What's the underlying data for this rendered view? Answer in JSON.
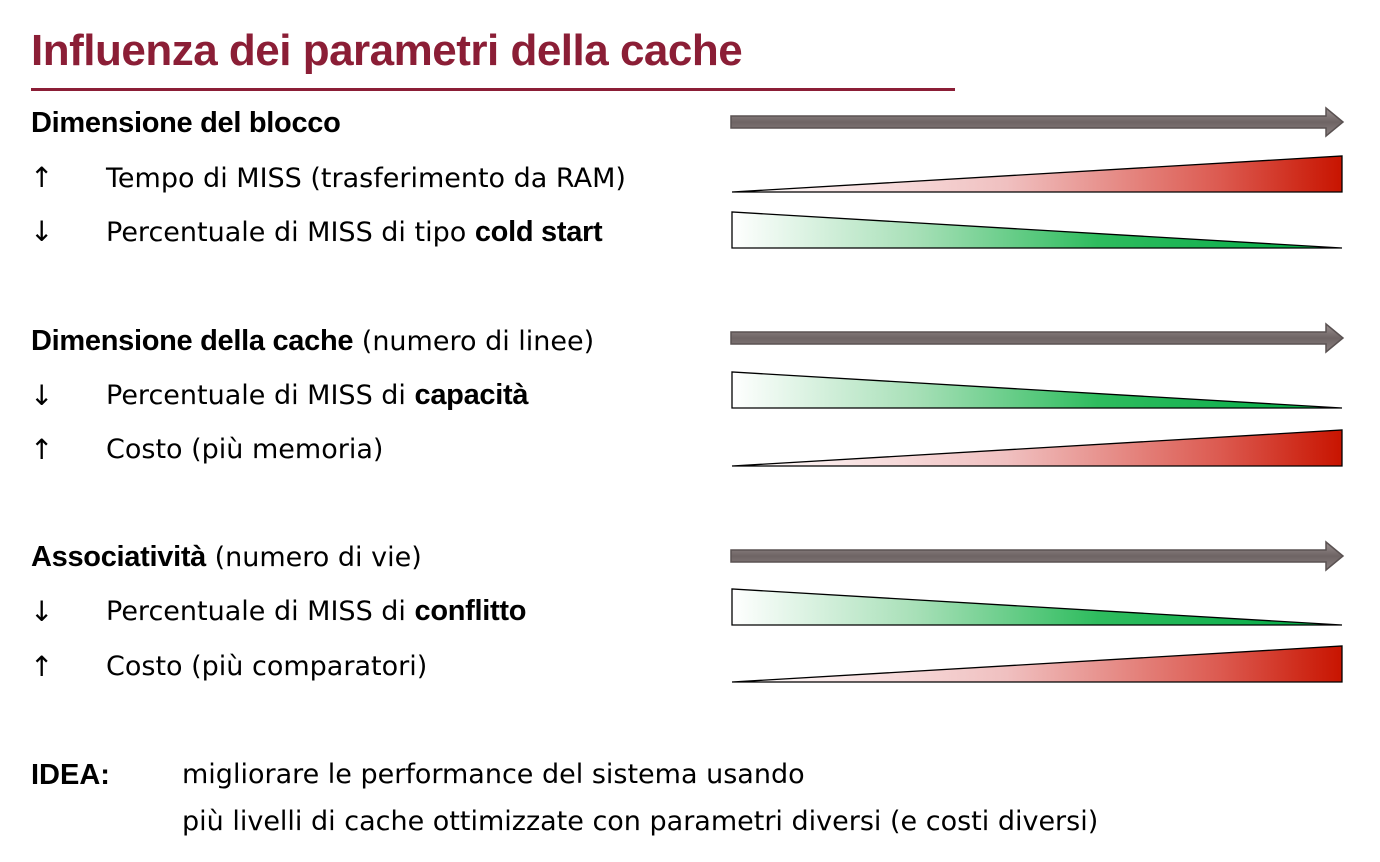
{
  "title": "Influenza dei parametri della cache",
  "sections": [
    {
      "heading": "Dimensione del blocco",
      "heading_note": "",
      "items": [
        {
          "direction": "↑",
          "text": "Tempo di MISS (trasferimento da RAM)",
          "emphasis": "",
          "trend": "increase",
          "color": "#c81400"
        },
        {
          "direction": "↓",
          "text": "Percentuale di MISS di tipo ",
          "emphasis": "cold start",
          "trend": "decrease",
          "color": "#00aa44"
        }
      ]
    },
    {
      "heading": "Dimensione della cache",
      "heading_note": " (numero di linee)",
      "items": [
        {
          "direction": "↓",
          "text": "Percentuale di MISS di ",
          "emphasis": "capacità",
          "trend": "decrease",
          "color": "#00aa44"
        },
        {
          "direction": "↑",
          "text": "Costo (più memoria)",
          "emphasis": "",
          "trend": "increase",
          "color": "#c81400"
        }
      ]
    },
    {
      "heading": "Associatività",
      "heading_note": " (numero di vie)",
      "items": [
        {
          "direction": "↓",
          "text": "Percentuale di MISS di ",
          "emphasis": "conflitto",
          "trend": "decrease",
          "color": "#00aa44"
        },
        {
          "direction": "↑",
          "text": "Costo (più comparatori)",
          "emphasis": "",
          "trend": "increase",
          "color": "#c81400"
        }
      ]
    }
  ],
  "idea": {
    "label": "IDEA:",
    "lines": [
      "migliorare le performance del sistema usando",
      "più livelli di cache ottimizzate con parametri diversi (e costi diversi)"
    ]
  },
  "colors": {
    "title": "#8b1e36",
    "arrow": "#7a7070",
    "increase": "#c81400",
    "decrease": "#00aa44"
  }
}
